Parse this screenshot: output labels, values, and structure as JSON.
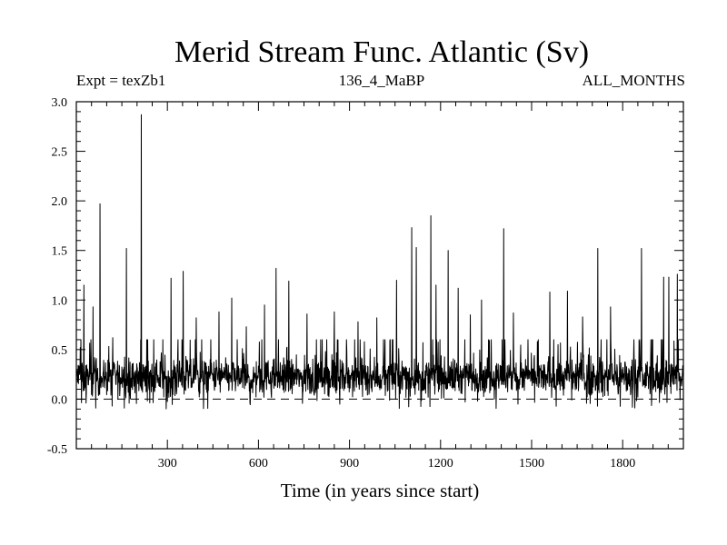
{
  "header": {
    "title": "Merid Stream Func. Atlantic (Sv)",
    "experiment": "Expt = texZb1",
    "run": "136_4_MaBP",
    "months": "ALL_MONTHS"
  },
  "chart_data": {
    "type": "line",
    "title": "Merid Stream Func. Atlantic (Sv)",
    "xlabel": "Time (in years since start)",
    "ylabel": "",
    "xlim": [
      0,
      2000
    ],
    "ylim": [
      -0.5,
      3.0
    ],
    "xticks": [
      300,
      600,
      900,
      1200,
      1500,
      1800
    ],
    "yticks": [
      -0.5,
      0.0,
      0.5,
      1.0,
      1.5,
      2.0,
      2.5,
      3.0
    ],
    "yticklabels": [
      "-0.5",
      "0.0",
      "0.5",
      "1.0",
      "1.5",
      "2.0",
      "2.5",
      "3.0"
    ],
    "reference_line": {
      "y": 0.0,
      "style": "dashed"
    },
    "grid": false,
    "line_color": "#000000",
    "series": [
      {
        "name": "",
        "baseline_mean": 0.22,
        "noise_range": [
          -0.1,
          0.6
        ],
        "spikes": [
          {
            "x": 25,
            "y": 1.15
          },
          {
            "x": 55,
            "y": 0.93
          },
          {
            "x": 78,
            "y": 1.97
          },
          {
            "x": 120,
            "y": 0.62
          },
          {
            "x": 165,
            "y": 1.52
          },
          {
            "x": 214,
            "y": 2.87
          },
          {
            "x": 312,
            "y": 1.22
          },
          {
            "x": 352,
            "y": 1.29
          },
          {
            "x": 395,
            "y": 0.82
          },
          {
            "x": 470,
            "y": 0.88
          },
          {
            "x": 512,
            "y": 1.02
          },
          {
            "x": 560,
            "y": 0.73
          },
          {
            "x": 620,
            "y": 0.95
          },
          {
            "x": 658,
            "y": 1.32
          },
          {
            "x": 700,
            "y": 1.19
          },
          {
            "x": 760,
            "y": 0.86
          },
          {
            "x": 850,
            "y": 0.88
          },
          {
            "x": 928,
            "y": 0.78
          },
          {
            "x": 990,
            "y": 0.82
          },
          {
            "x": 1055,
            "y": 1.2
          },
          {
            "x": 1105,
            "y": 1.73
          },
          {
            "x": 1120,
            "y": 1.53
          },
          {
            "x": 1168,
            "y": 1.85
          },
          {
            "x": 1185,
            "y": 1.15
          },
          {
            "x": 1225,
            "y": 1.5
          },
          {
            "x": 1258,
            "y": 1.12
          },
          {
            "x": 1298,
            "y": 0.85
          },
          {
            "x": 1335,
            "y": 1.0
          },
          {
            "x": 1408,
            "y": 1.72
          },
          {
            "x": 1440,
            "y": 0.87
          },
          {
            "x": 1560,
            "y": 1.08
          },
          {
            "x": 1618,
            "y": 1.09
          },
          {
            "x": 1668,
            "y": 0.83
          },
          {
            "x": 1718,
            "y": 1.52
          },
          {
            "x": 1760,
            "y": 0.93
          },
          {
            "x": 1862,
            "y": 1.52
          },
          {
            "x": 1935,
            "y": 1.23
          },
          {
            "x": 1952,
            "y": 1.23
          },
          {
            "x": 1980,
            "y": 1.26
          }
        ]
      }
    ]
  }
}
